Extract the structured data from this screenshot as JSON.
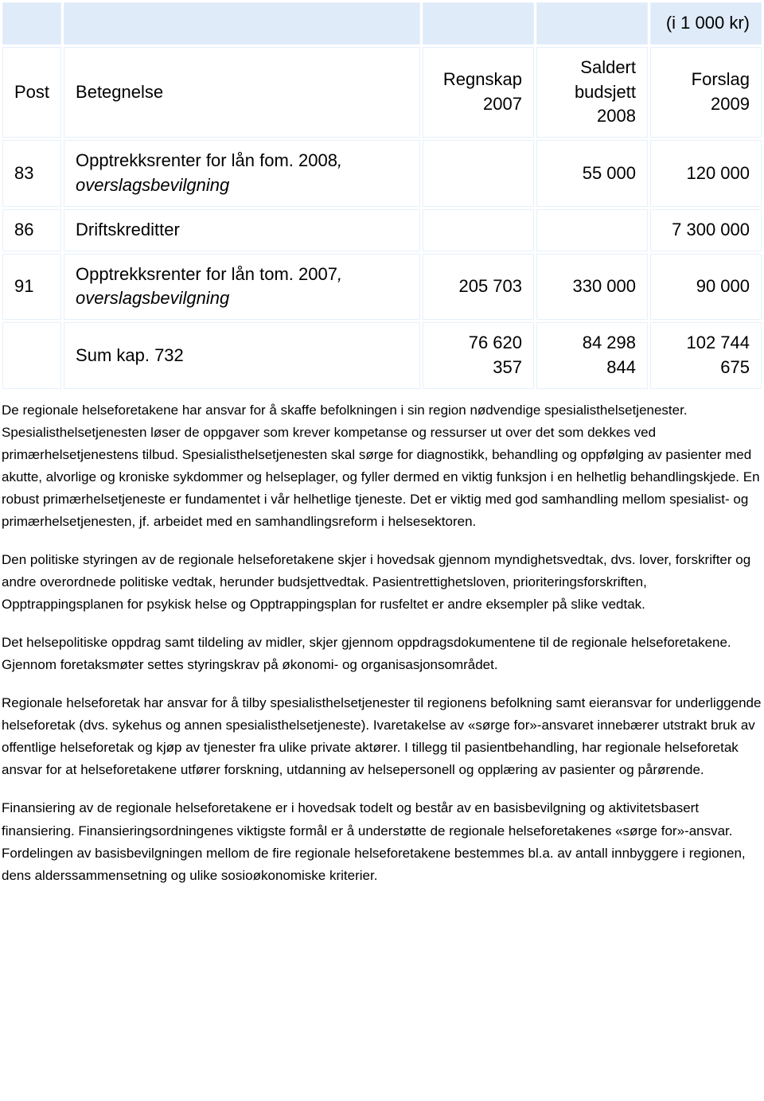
{
  "table": {
    "unit_label": "(i 1 000 kr)",
    "columns": {
      "post": "Post",
      "betegnelse": "Betegnelse",
      "regnskap": "Regnskap 2007",
      "saldert": "Saldert budsjett 2008",
      "forslag": "Forslag 2009"
    },
    "rows": [
      {
        "post": "83",
        "label_a": "Opptrekksrenter for lån fom. 2008",
        "label_b": ", overslagsbevilgning",
        "regnskap": "",
        "saldert": "55 000",
        "forslag": "120 000"
      },
      {
        "post": "86",
        "label_a": "Driftskreditter",
        "label_b": "",
        "regnskap": "",
        "saldert": "",
        "forslag": "7 300 000"
      },
      {
        "post": "91",
        "label_a": "Opptrekksrenter for lån tom. 2007",
        "label_b": ", overslagsbevilgning",
        "regnskap": "205 703",
        "saldert": "330 000",
        "forslag": "90 000"
      }
    ],
    "sum": {
      "post": "",
      "label": "Sum kap. 732",
      "regnskap": "76 620 357",
      "saldert": "84 298 844",
      "forslag": "102 744 675"
    }
  },
  "paragraphs": {
    "p1": "De regionale helseforetakene har ansvar for å skaffe befolkningen i sin region nødvendige spesialisthelsetjenester. Spesialisthelsetjenesten løser de oppgaver som krever kompetanse og ressurser ut over det som dekkes ved primærhelsetjenestens tilbud. Spesialisthelsetjenesten skal sørge for diagnostikk, behandling og oppfølging av pasienter med akutte, alvorlige og kroniske sykdommer og helseplager, og fyller dermed en viktig funksjon i en helhetlig behandlingskjede. En robust primærhelsetjeneste er fundamentet i vår helhetlige tjeneste. Det er viktig med god samhandling mellom spesialist- og primærhelsetjenesten, jf. arbeidet med en samhandlingsreform i helsesektoren.",
    "p2": "Den politiske styringen av de regionale helseforetakene skjer i hovedsak gjennom myndighetsvedtak, dvs. lover, forskrifter og andre overordnede politiske vedtak, herunder budsjettvedtak. Pasientrettighetsloven, prioriteringsforskriften, Opptrappingsplanen for psykisk helse og Opptrappingsplan for rusfeltet er andre eksempler på slike vedtak.",
    "p3": "Det helsepolitiske oppdrag samt tildeling av midler, skjer gjennom oppdragsdokumentene til de regionale helseforetakene. Gjennom foretaksmøter settes styringskrav på økonomi- og organisasjonsområdet.",
    "p4": "Regionale helseforetak har ansvar for å tilby spesialisthelsetjenester til regionens befolkning samt eieransvar for underliggende helseforetak (dvs. sykehus og annen spesialisthelsetjeneste). Ivaretakelse av «sørge for»-ansvaret innebærer utstrakt bruk av offentlige helseforetak og kjøp av tjenester fra ulike private aktører. I tillegg til pasientbehandling, har regionale helseforetak ansvar for at helseforetakene utfører forskning, utdanning av helsepersonell og opplæring av pasienter og pårørende.",
    "p5": "Finansiering av de regionale helseforetakene er i hovedsak todelt og består av en basisbevilgning og aktivitetsbasert finansiering. Finansieringsordningenes viktigste formål er å understøtte de regionale helseforetakenes «sørge for»-ansvar. Fordelingen av basisbevilgningen mellom de fire regionale helseforetakene bestemmes bl.a. av antall innbyggere i regionen, dens alderssammensetning og ulike sosioøkonomiske kriterier."
  }
}
